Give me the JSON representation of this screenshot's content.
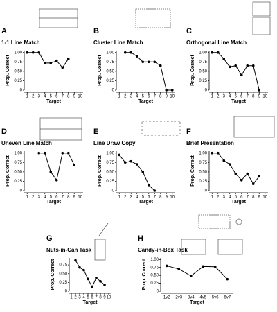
{
  "chart_data": [
    {
      "type": "line",
      "panel_label": "A",
      "title": "1-1 Line Match",
      "xlabel": "Target",
      "ylabel": "Prop. Correct",
      "x": [
        1,
        2,
        3,
        4,
        5,
        6,
        7,
        8
      ],
      "values": [
        1.0,
        1.0,
        1.0,
        0.72,
        0.72,
        0.78,
        0.6,
        0.83
      ],
      "xlim": [
        0.5,
        10.5
      ],
      "xticks": [
        1,
        2,
        3,
        4,
        5,
        6,
        7,
        8,
        9,
        10
      ],
      "ylim": [
        0,
        1.05
      ],
      "yticks": [
        0,
        0.25,
        {
          "value": 0.5,
          "label": "0.50"
        },
        0.75,
        {
          "value": 1,
          "label": "1.00"
        }
      ],
      "color": "#000000"
    },
    {
      "type": "line",
      "panel_label": "B",
      "title": "Cluster Line Match",
      "xlabel": "Target",
      "ylabel": "Prop. Correct",
      "x": [
        2,
        3,
        4,
        5,
        6,
        7,
        8,
        9,
        10
      ],
      "values": [
        1.0,
        1.0,
        0.9,
        0.75,
        0.75,
        0.75,
        0.65,
        0.0,
        0.0
      ],
      "xlim": [
        0.5,
        10.5
      ],
      "xticks": [
        1,
        2,
        3,
        4,
        5,
        6,
        7,
        8,
        9,
        10
      ],
      "ylim": [
        0,
        1.05
      ],
      "yticks": [
        0,
        0.25,
        {
          "value": 0.5,
          "label": "0.50"
        },
        0.75,
        {
          "value": 1,
          "label": "1.00"
        }
      ],
      "color": "#000000"
    },
    {
      "type": "line",
      "panel_label": "C",
      "title": "Orthogonal Line Match",
      "xlabel": "Target",
      "ylabel": "Prop. Correct",
      "x": [
        1,
        2,
        3,
        4,
        5,
        6,
        7,
        8,
        9
      ],
      "values": [
        1.0,
        1.0,
        0.83,
        0.62,
        0.65,
        0.4,
        0.65,
        0.65,
        0.0
      ],
      "xlim": [
        0.5,
        10.5
      ],
      "xticks": [
        1,
        2,
        3,
        4,
        5,
        6,
        7,
        8,
        9,
        10
      ],
      "ylim": [
        0,
        1.05
      ],
      "yticks": [
        0,
        0.25,
        {
          "value": 0.5,
          "label": "0.50"
        },
        0.75,
        {
          "value": 1,
          "label": "1.00"
        }
      ],
      "color": "#000000"
    },
    {
      "type": "line",
      "panel_label": "D",
      "title": "Uneven Line Match",
      "xlabel": "Target",
      "ylabel": "Prop. Correct",
      "x": [
        3,
        4,
        5,
        6,
        7,
        8,
        9
      ],
      "values": [
        1.0,
        1.0,
        0.5,
        0.28,
        1.0,
        1.0,
        0.68
      ],
      "xlim": [
        0.5,
        10.5
      ],
      "xticks": [
        1,
        2,
        3,
        4,
        5,
        6,
        7,
        8,
        9,
        10
      ],
      "ylim": [
        0,
        1.05
      ],
      "yticks": [
        0,
        0.25,
        {
          "value": 0.5,
          "label": "0.50"
        },
        0.75,
        {
          "value": 1,
          "label": "1.00"
        }
      ],
      "color": "#000000"
    },
    {
      "type": "line",
      "panel_label": "E",
      "title": "Line Draw Copy",
      "xlabel": "Target",
      "ylabel": "Prop. Correct",
      "x": [
        1,
        2,
        3,
        4,
        5,
        6,
        7
      ],
      "values": [
        0.95,
        0.75,
        0.78,
        0.7,
        0.5,
        0.15,
        0.0
      ],
      "xlim": [
        0.5,
        10.5
      ],
      "xticks": [
        1,
        2,
        3,
        4,
        5,
        6,
        7,
        8,
        9,
        10
      ],
      "ylim": [
        0,
        1.05
      ],
      "yticks": [
        0,
        0.25,
        {
          "value": 0.5,
          "label": "0.50"
        },
        0.75,
        {
          "value": 1,
          "label": "1.00"
        }
      ],
      "color": "#000000"
    },
    {
      "type": "line",
      "panel_label": "F",
      "title": "Brief Presentation",
      "xlabel": "Target",
      "ylabel": "Prop. Correct",
      "x": [
        1,
        2,
        3,
        4,
        5,
        6,
        7,
        8,
        9
      ],
      "values": [
        1.0,
        1.0,
        0.8,
        0.7,
        0.45,
        0.28,
        0.45,
        0.18,
        0.38
      ],
      "xlim": [
        0.5,
        10.5
      ],
      "xticks": [
        1,
        2,
        3,
        4,
        5,
        6,
        7,
        8,
        9,
        10
      ],
      "ylim": [
        0,
        1.05
      ],
      "yticks": [
        0,
        0.25,
        {
          "value": 0.5,
          "label": "0.50"
        },
        0.75,
        {
          "value": 1,
          "label": "1.00"
        }
      ],
      "color": "#000000"
    },
    {
      "type": "line",
      "panel_label": "G",
      "title": "Nuts-in-Can Task",
      "xlabel": "Target",
      "ylabel": "Prop. Correct",
      "x": [
        2,
        3,
        4,
        5,
        6,
        7,
        8,
        9
      ],
      "values": [
        0.88,
        0.68,
        0.6,
        0.35,
        0.12,
        0.38,
        0.28,
        0.18
      ],
      "xlim": [
        0.5,
        10.5
      ],
      "xticks": [
        1,
        2,
        3,
        4,
        5,
        6,
        7,
        8,
        9,
        10
      ],
      "ylim": [
        0,
        0.95
      ],
      "yticks": [
        0,
        0.25,
        {
          "value": 0.5,
          "label": "0.50"
        },
        0.75
      ],
      "color": "#000000"
    },
    {
      "type": "category-line",
      "panel_label": "H",
      "title": "Candy-in-Box Task",
      "xlabel": "Target",
      "ylabel": "Prop. Correct",
      "categories": [
        "1v2",
        "2v3",
        "3v4",
        "4v5",
        "5v6",
        "6v7"
      ],
      "values": [
        0.8,
        0.7,
        0.48,
        0.78,
        0.77,
        0.38
      ],
      "ylim": [
        0,
        1.05
      ],
      "yticks": [
        0,
        0.25,
        {
          "value": 0.5,
          "label": "0.50"
        },
        0.75,
        {
          "value": 1,
          "label": "1.00"
        }
      ],
      "color": "#000000"
    }
  ]
}
